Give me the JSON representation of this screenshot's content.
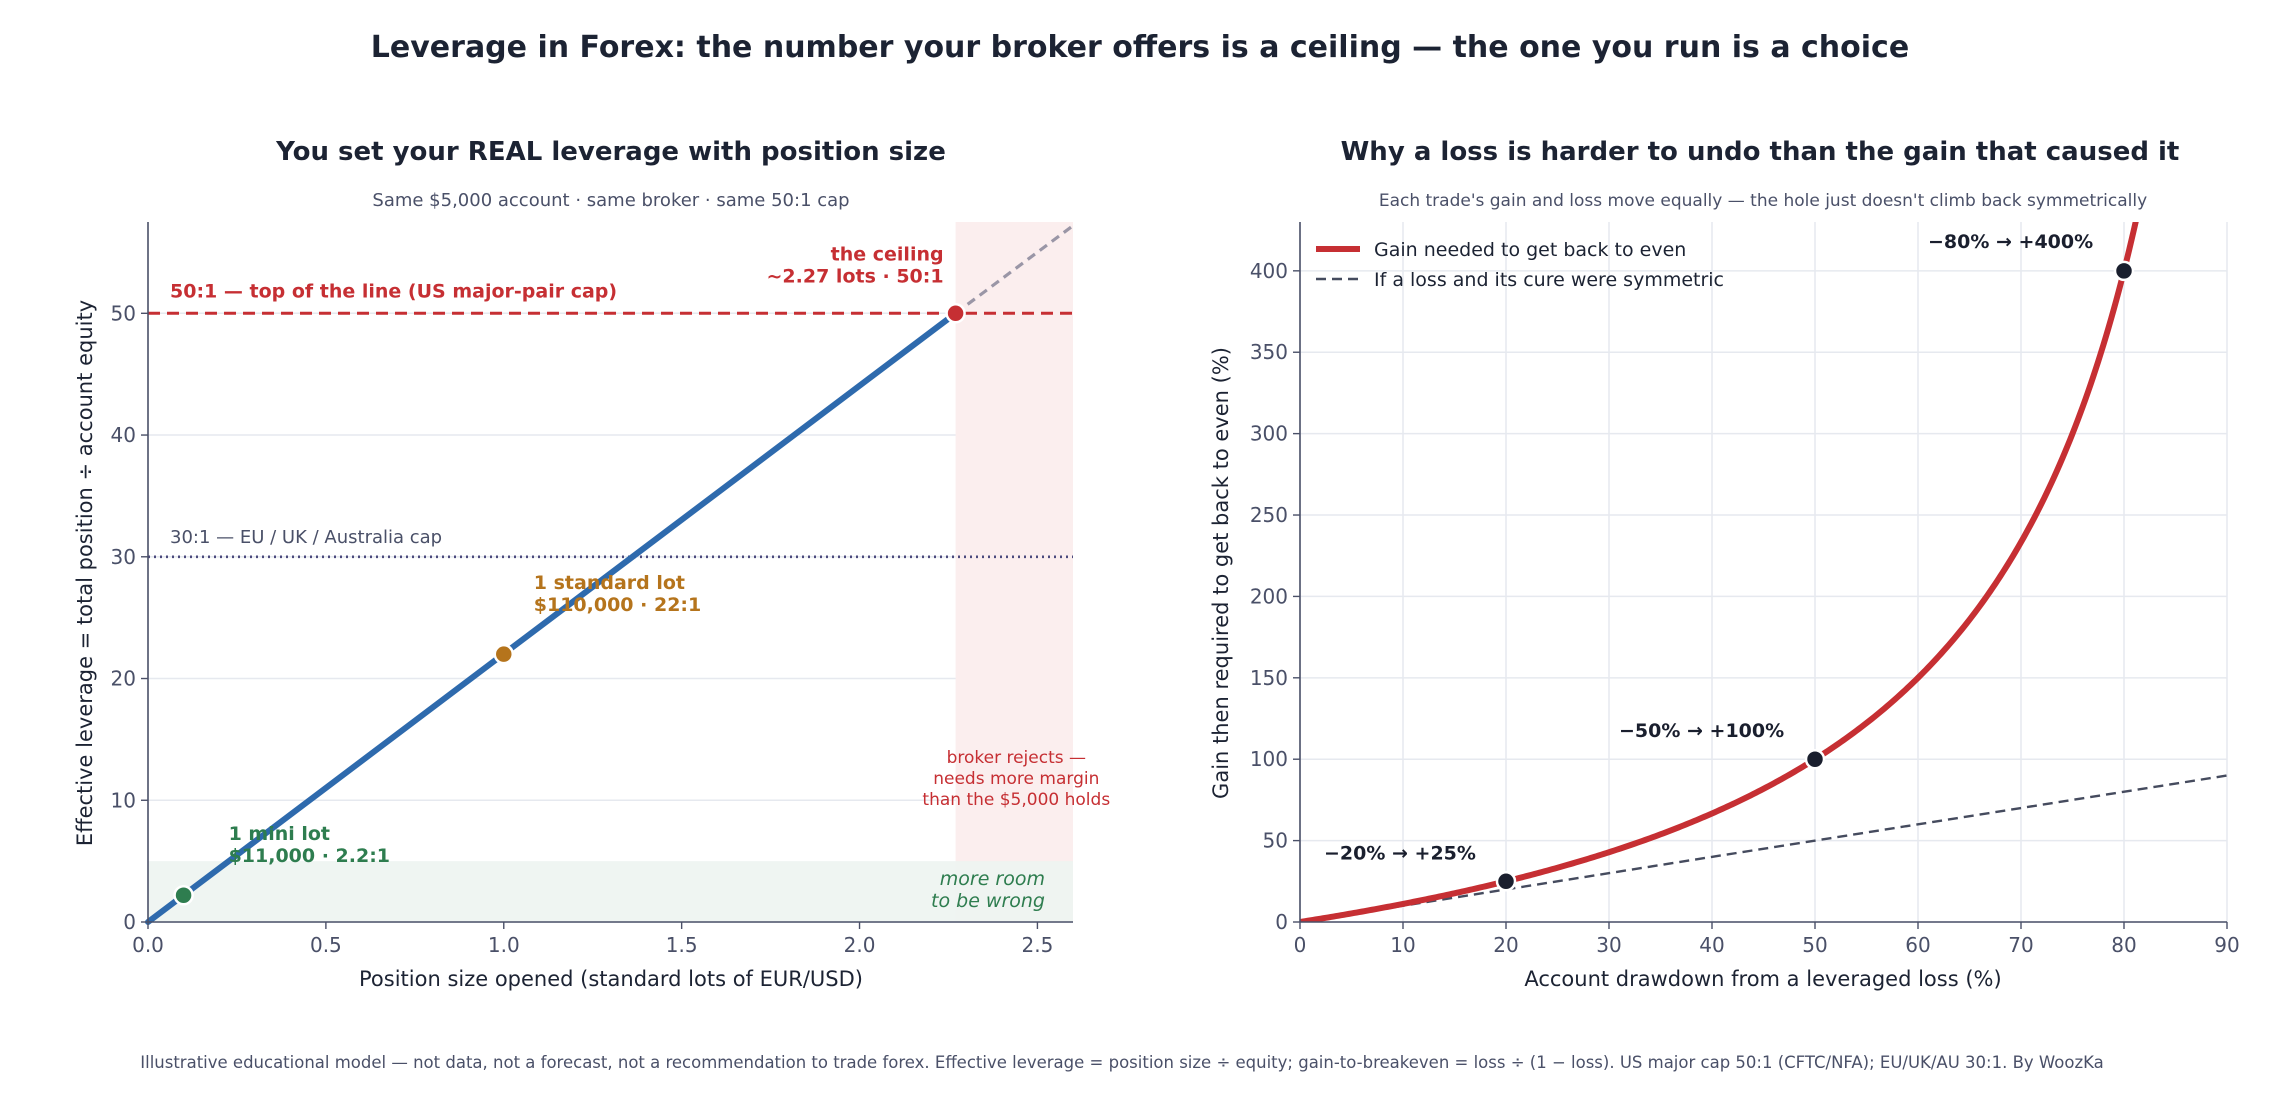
{
  "page": {
    "title": "Leverage in Forex: the number your broker offers is a ceiling — the one you run is a choice",
    "footer": "Illustrative educational model — not data, not a forecast, not a recommendation to trade forex.   Effective leverage = position size ÷ equity;  gain-to-breakeven = loss ÷ (1 − loss).   US major cap 50:1 (CFTC/NFA); EU/UK/AU 30:1.   By WoozKa"
  },
  "colors": {
    "text_dark": "#1c2333",
    "text_muted": "#4a5068",
    "grid": "#e6e9ef",
    "blue_line": "#2e6aad",
    "red": "#c62f33",
    "orange": "#b5741c",
    "green": "#2e7d4f",
    "purple_dotted": "#4b4a7d",
    "dashed_gray": "#9a96a6",
    "dark_dashed": "#454b5e",
    "point_dark": "#1a1f2e",
    "red_band": "#fbeeee",
    "green_band": "#edf4f1"
  },
  "chart_data": [
    {
      "type": "line",
      "title": "You set your REAL leverage with position size",
      "subtitle": "Same $5,000 account · same broker · same 50:1 cap",
      "xlabel": "Position size opened (standard lots of EUR/USD)",
      "ylabel": "Effective leverage  =  total position ÷ account equity",
      "xlim": [
        0,
        2.6
      ],
      "ylim": [
        0,
        57.5
      ],
      "xticks": [
        0.0,
        0.5,
        1.0,
        1.5,
        2.0,
        2.5
      ],
      "xtick_labels": [
        "0.0",
        "0.5",
        "1.0",
        "1.5",
        "2.0",
        "2.5"
      ],
      "yticks": [
        0,
        10,
        20,
        30,
        40,
        50
      ],
      "ytick_labels": [
        "0",
        "10",
        "20",
        "30",
        "40",
        "50"
      ],
      "grid": "horizontal",
      "series": [
        {
          "role": "solid",
          "x": [
            0,
            2.27
          ],
          "y": [
            0,
            50
          ]
        },
        {
          "role": "dashed",
          "x": [
            2.27,
            2.6
          ],
          "y": [
            50,
            57.2
          ]
        }
      ],
      "reference_lines": [
        {
          "role": "cap-50",
          "y": 50,
          "label": "50:1 — top of the line (US major-pair cap)"
        },
        {
          "role": "cap-30",
          "y": 30,
          "label": "30:1 — EU / UK / Australia cap"
        }
      ],
      "bands": [
        {
          "role": "reject-zone",
          "x_from": 2.27,
          "x_to": 2.6,
          "label": "broker rejects —\nneeds more margin\nthan the $5,000 holds"
        },
        {
          "role": "room-zone",
          "y_from": 0,
          "y_to": 5,
          "label": "more room\nto be wrong"
        }
      ],
      "points": [
        {
          "role": "mini",
          "x": 0.1,
          "y": 2.2,
          "label": "1 mini lot\n$11,000 · 2.2:1"
        },
        {
          "role": "standard",
          "x": 1.0,
          "y": 22,
          "label": "1 standard lot\n$110,000 · 22:1"
        },
        {
          "role": "ceiling",
          "x": 2.27,
          "y": 50,
          "label": "the ceiling\n~2.27 lots · 50:1"
        }
      ]
    },
    {
      "type": "line",
      "title": "Why a loss is harder to undo than the gain that caused it",
      "subtitle": "Each trade's gain and loss move equally — the hole just doesn't climb back symmetrically",
      "xlabel": "Account drawdown from a leveraged loss (%)",
      "ylabel": "Gain then required to get back to even (%)",
      "xlim": [
        0,
        90
      ],
      "ylim": [
        0,
        430
      ],
      "xticks": [
        0,
        10,
        20,
        30,
        40,
        50,
        60,
        70,
        80,
        90
      ],
      "xtick_labels": [
        "0",
        "10",
        "20",
        "30",
        "40",
        "50",
        "60",
        "70",
        "80",
        "90"
      ],
      "yticks": [
        0,
        50,
        100,
        150,
        200,
        250,
        300,
        350,
        400
      ],
      "ytick_labels": [
        "0",
        "50",
        "100",
        "150",
        "200",
        "250",
        "300",
        "350",
        "400"
      ],
      "grid": "both",
      "series": [
        {
          "name": "Gain needed to get back to even",
          "formula": "100*x/(100-x)",
          "style": "solid"
        },
        {
          "name": "If a loss and its cure were symmetric",
          "formula": "x",
          "style": "dashed"
        }
      ],
      "legend": "top-left",
      "points": [
        {
          "x": 20,
          "y": 25,
          "label": "−20% → +25%"
        },
        {
          "x": 50,
          "y": 100,
          "label": "−50% → +100%"
        },
        {
          "x": 80,
          "y": 400,
          "label": "−80% → +400%"
        }
      ]
    }
  ]
}
